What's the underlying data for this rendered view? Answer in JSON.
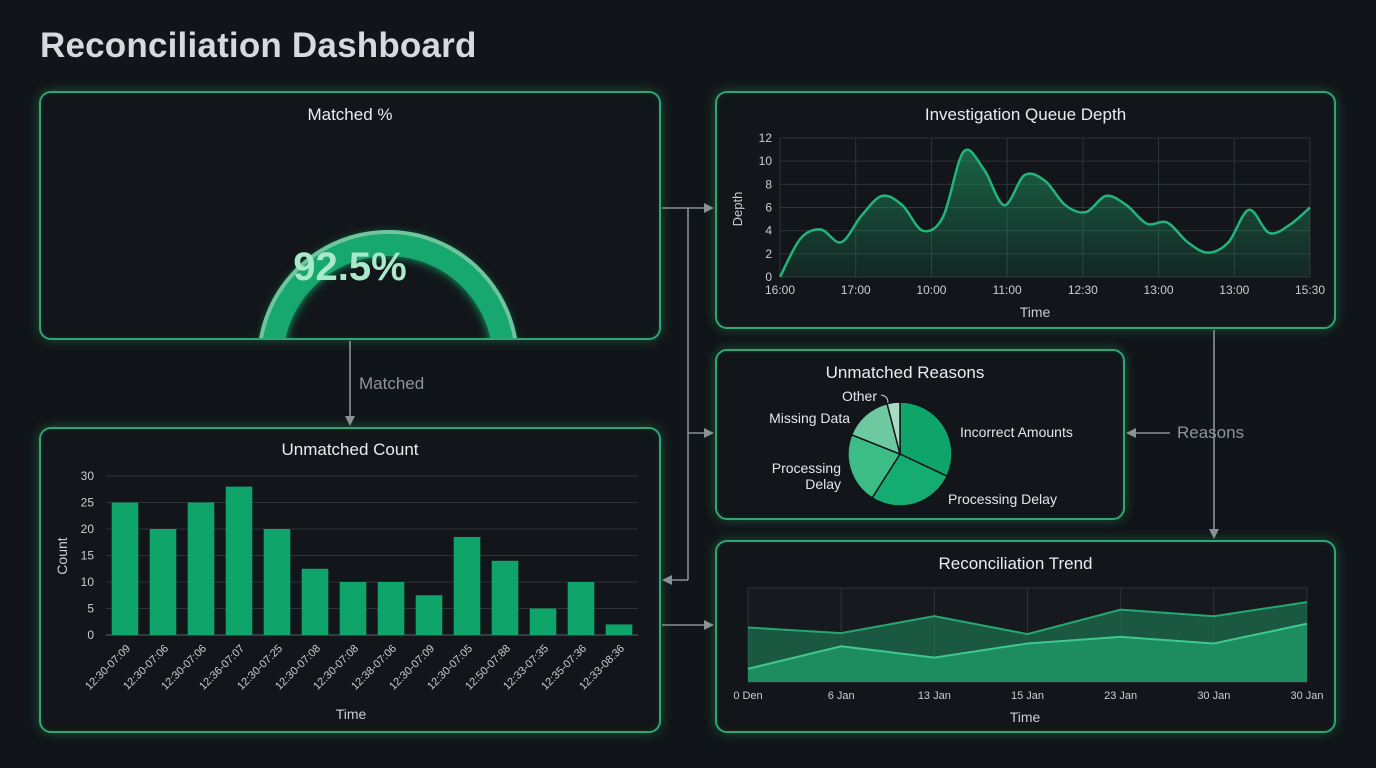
{
  "page": {
    "title": "Reconciliation Dashboard"
  },
  "colors": {
    "accent": "#2fa572",
    "bar": "#0fa46a",
    "background": "#111418",
    "connector": "#8a9096"
  },
  "flow_labels": {
    "matched": "Matched",
    "reasons": "Reasons"
  },
  "matched_panel": {
    "title": "Matched %",
    "value_text": "92.5%",
    "value": 92.5
  },
  "unmatched_count": {
    "title": "Unmatched Count",
    "chart_data": {
      "type": "bar",
      "categories": [
        "12:30-07:09",
        "12:30-07:06",
        "12:30-07:06",
        "12:36-07:07",
        "12:30-07:25",
        "12:30-07:08",
        "12:30-07:08",
        "12:38-07:06",
        "12:30-07:09",
        "12:30-07:05",
        "12:50-07:88",
        "12:33-07:35",
        "12:35-07:36",
        "12:33-08:36"
      ],
      "values": [
        25,
        20,
        25,
        28,
        20,
        12.5,
        10,
        10,
        7.5,
        18.5,
        14,
        5,
        10,
        2
      ],
      "xlabel": "Time",
      "ylabel": "Count",
      "yticks": [
        0,
        5,
        10,
        15,
        20,
        25,
        30
      ],
      "ylim": [
        0,
        30
      ],
      "grid": true
    }
  },
  "queue_depth": {
    "title": "Investigation Queue Depth",
    "chart_data": {
      "type": "area",
      "x_ticks": [
        "16:00",
        "17:00",
        "10:00",
        "11:00",
        "12:30",
        "13:00",
        "13:00",
        "15:30"
      ],
      "values": [
        0,
        3.3,
        4.1,
        3.0,
        5.3,
        7.0,
        6.2,
        4.0,
        5.2,
        10.8,
        9.3,
        6.2,
        8.8,
        8.3,
        6.2,
        5.6,
        7.0,
        6.2,
        4.6,
        4.7,
        3.0,
        2.1,
        3.0,
        5.8,
        3.8,
        4.5,
        6.0
      ],
      "xlabel": "Time",
      "ylabel": "Depth",
      "yticks": [
        0,
        2,
        4,
        6,
        8,
        10,
        12
      ],
      "ylim": [
        0,
        12
      ],
      "grid": true
    }
  },
  "unmatched_reasons": {
    "title": "Unmatched Reasons",
    "chart_data": {
      "type": "pie",
      "labels": [
        "Incorrect Amounts",
        "Processing Delay",
        "Processing Delay",
        "Missing Data",
        "Other"
      ],
      "values": [
        32,
        27,
        22,
        15,
        4
      ],
      "colors": [
        "#0fa46a",
        "#14ac70",
        "#3dbd86",
        "#6cc9a0",
        "#a7dcc2"
      ]
    }
  },
  "reconciliation_trend": {
    "title": "Reconciliation Trend",
    "chart_data": {
      "type": "area",
      "x_ticks": [
        "0 Den",
        "6 Jan",
        "13 Jan",
        "15 Jan",
        "23 Jan",
        "30 Jan",
        "30 Jan"
      ],
      "series": [
        {
          "values": [
            0.58,
            0.52,
            0.7,
            0.51,
            0.77,
            0.7,
            0.85
          ]
        },
        {
          "values": [
            0.14,
            0.38,
            0.26,
            0.41,
            0.48,
            0.41,
            0.62
          ]
        }
      ],
      "xlabel": "Time",
      "ylim": [
        0,
        1
      ],
      "grid": true
    }
  }
}
